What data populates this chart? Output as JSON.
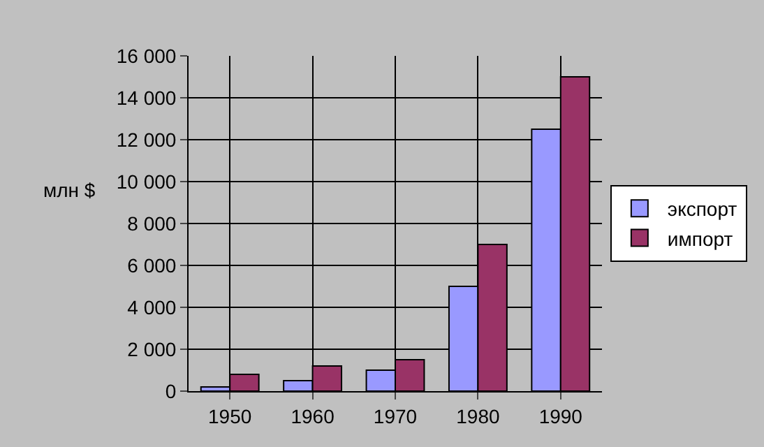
{
  "chart_data": {
    "type": "bar",
    "ylabel": "млн $",
    "categories": [
      "1950",
      "1960",
      "1970",
      "1980",
      "1990"
    ],
    "series": [
      {
        "name": "экспорт",
        "color": "#9999ff",
        "values": [
          200,
          500,
          1000,
          5000,
          12500
        ]
      },
      {
        "name": "импорт",
        "color": "#993366",
        "values": [
          800,
          1200,
          1500,
          7000,
          15000
        ]
      }
    ],
    "ylim": [
      0,
      16000
    ],
    "yticks": [
      {
        "value": 0,
        "label": "0"
      },
      {
        "value": 2000,
        "label": "2 000"
      },
      {
        "value": 4000,
        "label": "4 000"
      },
      {
        "value": 6000,
        "label": "6 000"
      },
      {
        "value": 8000,
        "label": "8 000"
      },
      {
        "value": 10000,
        "label": "10 000"
      },
      {
        "value": 12000,
        "label": "12 000"
      },
      {
        "value": 14000,
        "label": "14 000"
      },
      {
        "value": 16000,
        "label": "16 000"
      }
    ],
    "grid": true,
    "legend": "right"
  }
}
